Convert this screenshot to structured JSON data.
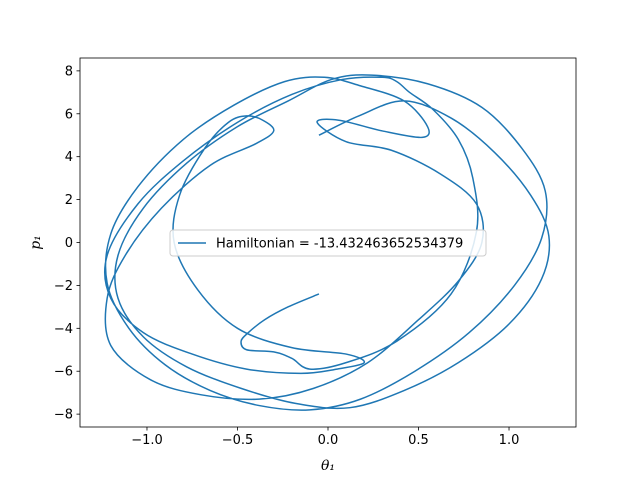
{
  "chart_data": {
    "type": "line",
    "title": "",
    "xlabel": "θ₁",
    "ylabel": "p₁",
    "xlim": [
      -1.37,
      1.37
    ],
    "ylim": [
      -8.6,
      8.6
    ],
    "xticks": [
      -1.0,
      -0.5,
      0.0,
      0.5,
      1.0
    ],
    "xtick_labels": [
      "−1.0",
      "−0.5",
      "0.0",
      "0.5",
      "1.0"
    ],
    "yticks": [
      -8,
      -6,
      -4,
      -2,
      0,
      2,
      4,
      6,
      8
    ],
    "ytick_labels": [
      "−8",
      "−6",
      "−4",
      "−2",
      "0",
      "2",
      "4",
      "6",
      "8"
    ],
    "grid": false,
    "legend_position": "center",
    "series": [
      {
        "name": "Hamiltonian = -13.432463652534379",
        "color": "#1f77b4",
        "x": [
          -0.05,
          0.17,
          0.42,
          0.68,
          0.92,
          1.12,
          1.22,
          1.18,
          1.0,
          0.72,
          0.42,
          0.12,
          -0.18,
          -0.48,
          -0.78,
          -1.02,
          -1.16,
          -1.16,
          -1.02,
          -0.78,
          -0.5,
          -0.22,
          0.02,
          0.24,
          0.55,
          0.85,
          1.07,
          1.2,
          1.18,
          1.03,
          0.78,
          0.48,
          0.18,
          -0.1,
          -0.38,
          -0.65,
          -0.9,
          -1.1,
          -1.22,
          -1.2,
          -1.05,
          -0.8,
          -0.52,
          -0.24,
          -0.02,
          0.18,
          0.42,
          0.55,
          0.52,
          0.3,
          0.06,
          -0.06,
          0.1,
          0.35,
          0.62,
          0.82,
          0.85,
          0.72,
          0.5,
          0.22,
          -0.08,
          -0.38,
          -0.7,
          -0.98,
          -1.2,
          -1.22,
          -1.12,
          -0.92,
          -0.65,
          -0.4,
          -0.3,
          -0.36,
          -0.45,
          -0.55,
          -0.68,
          -0.82,
          -0.85,
          -0.72,
          -0.5,
          -0.2,
          0.1,
          0.2,
          0.05,
          -0.15,
          -0.45,
          -0.75,
          -1.02,
          -1.2,
          -1.22,
          -1.05,
          -0.8,
          -0.5,
          -0.2,
          0.08,
          0.3,
          0.38,
          0.45,
          0.58,
          0.72,
          0.8,
          0.82,
          0.68,
          0.38,
          0.1,
          -0.1,
          -0.2,
          -0.3,
          -0.45,
          -0.48,
          -0.44,
          -0.35,
          -0.22,
          -0.05
        ],
        "y": [
          5.0,
          5.9,
          6.6,
          5.8,
          4.2,
          2.2,
          0.3,
          -1.7,
          -3.8,
          -5.6,
          -6.9,
          -7.7,
          -7.5,
          -6.8,
          -5.8,
          -4.4,
          -2.6,
          -0.6,
          1.6,
          3.7,
          5.4,
          6.6,
          7.6,
          7.8,
          7.4,
          6.3,
          4.4,
          2.4,
          0.2,
          -2.0,
          -4.2,
          -6.0,
          -7.3,
          -7.8,
          -7.6,
          -6.9,
          -5.7,
          -4.0,
          -1.9,
          0.4,
          2.6,
          4.8,
          6.4,
          7.5,
          7.7,
          7.3,
          6.6,
          5.4,
          4.9,
          5.2,
          5.7,
          5.6,
          4.7,
          4.3,
          3.2,
          1.8,
          0.0,
          -1.8,
          -3.6,
          -5.6,
          -6.8,
          -7.3,
          -7.1,
          -6.4,
          -4.8,
          -2.6,
          -0.6,
          1.6,
          3.6,
          4.6,
          5.2,
          5.7,
          5.9,
          5.6,
          4.4,
          2.2,
          0.0,
          -2.2,
          -4.0,
          -4.9,
          -5.2,
          -5.6,
          -5.9,
          -6.1,
          -5.9,
          -5.2,
          -4.2,
          -2.6,
          -0.6,
          1.8,
          3.8,
          5.6,
          6.9,
          7.6,
          7.7,
          7.5,
          7.0,
          6.2,
          4.8,
          3.0,
          0.5,
          -2.4,
          -4.6,
          -5.6,
          -5.9,
          -5.4,
          -5.1,
          -5.0,
          -4.6,
          -4.2,
          -3.6,
          -3.0,
          -2.4
        ]
      }
    ]
  }
}
